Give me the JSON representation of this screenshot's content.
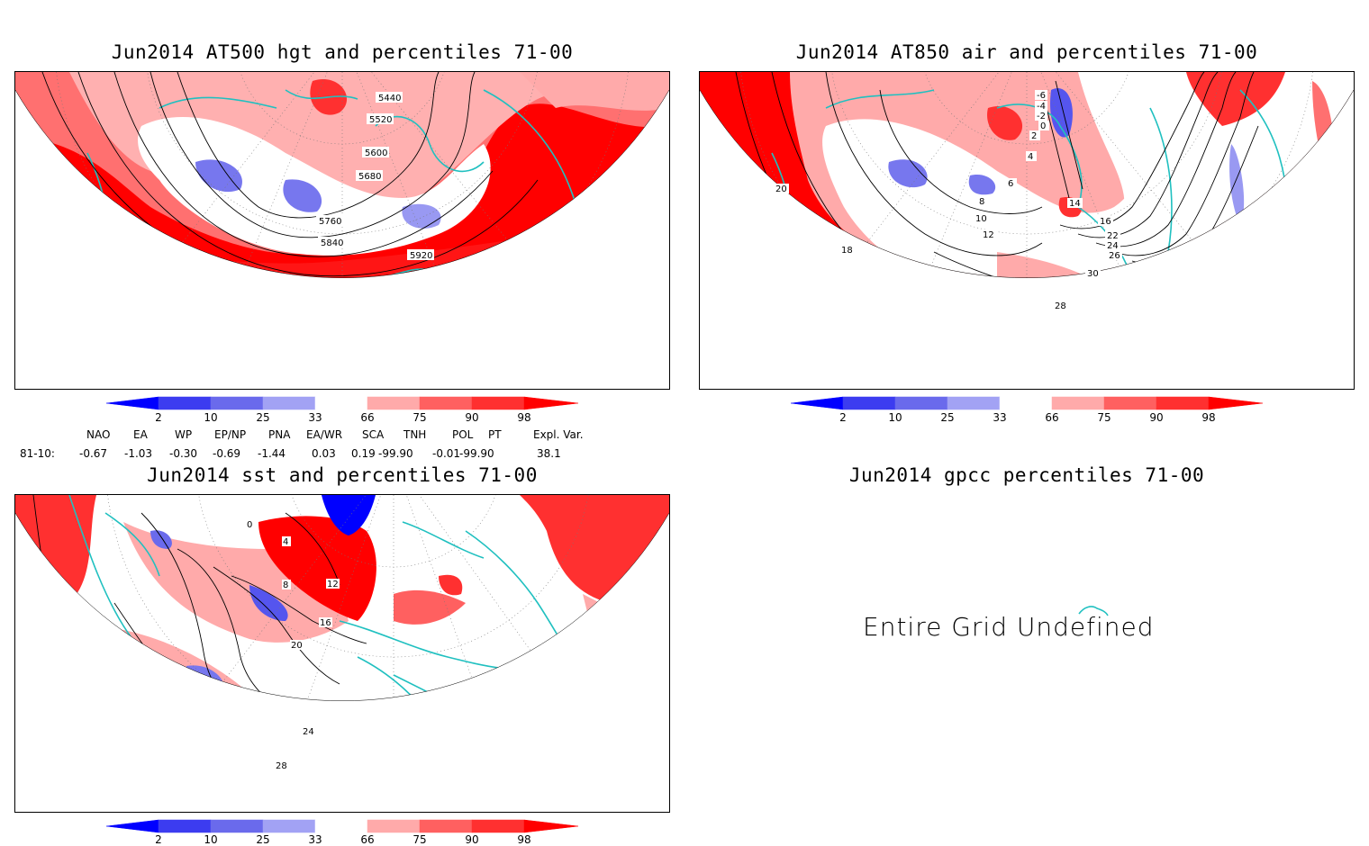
{
  "panels": {
    "hgt": {
      "title": "Jun2014 AT500 hgt and percentiles 71-00",
      "contours": [
        "5440",
        "5520",
        "5600",
        "5680",
        "5760",
        "5840",
        "5920"
      ]
    },
    "air": {
      "title": "Jun2014 AT850 air and percentiles 71-00",
      "contours": [
        "-6",
        "-4",
        "-2",
        "0",
        "2",
        "4",
        "6",
        "8",
        "10",
        "12",
        "14",
        "16",
        "18",
        "20",
        "22",
        "24",
        "26",
        "28",
        "30"
      ]
    },
    "sst": {
      "title": "Jun2014 sst and percentiles 71-00",
      "contours": [
        "0",
        "4",
        "8",
        "12",
        "16",
        "20",
        "24",
        "28"
      ]
    },
    "gpcc": {
      "title": "Jun2014 gpcc percentiles 71-00",
      "message": "Entire Grid Undefined"
    }
  },
  "colorbar": {
    "labels": [
      "2",
      "10",
      "25",
      "33",
      "66",
      "75",
      "90",
      "98"
    ],
    "colors": [
      "#0000ff",
      "#3c3cf0",
      "#6a6aec",
      "#a2a2f4",
      "#ffffff",
      "#ffaaaa",
      "#ff6060",
      "#ff3030",
      "#ff0000"
    ]
  },
  "teleconnections": {
    "row_label": "81-10:",
    "headers": [
      "NAO",
      "EA",
      "WP",
      "EP/NP",
      "PNA",
      "EA/WR",
      "SCA",
      "TNH",
      "POL",
      "PT",
      "Expl. Var."
    ],
    "values": [
      "-0.67",
      "-1.03",
      "-0.30",
      "-0.69",
      "-1.44",
      "0.03",
      "0.19",
      "-99.90",
      "-0.01",
      "-99.90",
      "38.1"
    ]
  },
  "colors": {
    "coast": "#20c0c0",
    "warm": "#ff0000",
    "cold": "#4040ff"
  }
}
